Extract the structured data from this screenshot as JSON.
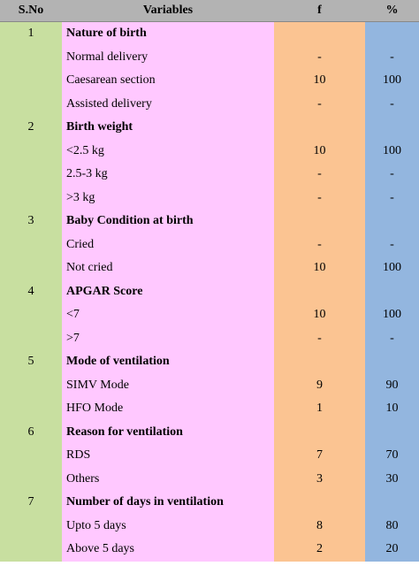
{
  "header": {
    "sno": "S.No",
    "variables": "Variables",
    "f": "f",
    "pct": "%"
  },
  "rows": [
    {
      "sno": "1",
      "label": "Nature of birth",
      "bold": true,
      "f": "",
      "pct": ""
    },
    {
      "sno": "",
      "label": "Normal delivery",
      "bold": false,
      "f": "-",
      "pct": "-"
    },
    {
      "sno": "",
      "label": "Caesarean section",
      "bold": false,
      "f": "10",
      "pct": "100"
    },
    {
      "sno": "",
      "label": "Assisted delivery",
      "bold": false,
      "f": "-",
      "pct": "-"
    },
    {
      "sno": "2",
      "label": "Birth weight",
      "bold": true,
      "f": "",
      "pct": ""
    },
    {
      "sno": "",
      "label": "<2.5 kg",
      "bold": false,
      "f": "10",
      "pct": "100"
    },
    {
      "sno": "",
      "label": "2.5-3 kg",
      "bold": false,
      "f": "-",
      "pct": "-"
    },
    {
      "sno": "",
      "label": ">3 kg",
      "bold": false,
      "f": "-",
      "pct": "-"
    },
    {
      "sno": "3",
      "label": "Baby Condition at birth",
      "bold": true,
      "f": "",
      "pct": ""
    },
    {
      "sno": "",
      "label": "Cried",
      "bold": false,
      "f": "-",
      "pct": "-"
    },
    {
      "sno": "",
      "label": "Not cried",
      "bold": false,
      "f": "10",
      "pct": "100"
    },
    {
      "sno": "4",
      "label": "APGAR Score",
      "bold": true,
      "f": "",
      "pct": ""
    },
    {
      "sno": "",
      "label": "<7",
      "bold": false,
      "f": "10",
      "pct": "100"
    },
    {
      "sno": "",
      "label": ">7",
      "bold": false,
      "f": "-",
      "pct": "-"
    },
    {
      "sno": "5",
      "label": "Mode of ventilation",
      "bold": true,
      "f": "",
      "pct": ""
    },
    {
      "sno": "",
      "label": "SIMV Mode",
      "bold": false,
      "f": "9",
      "pct": "90"
    },
    {
      "sno": "",
      "label": "HFO Mode",
      "bold": false,
      "f": "1",
      "pct": "10"
    },
    {
      "sno": "6",
      "label": "Reason for ventilation",
      "bold": true,
      "f": "",
      "pct": ""
    },
    {
      "sno": "",
      "label": "RDS",
      "bold": false,
      "f": "7",
      "pct": "70"
    },
    {
      "sno": "",
      "label": "Others",
      "bold": false,
      "f": "3",
      "pct": "30"
    },
    {
      "sno": "7",
      "label": "Number of days in ventilation",
      "bold": true,
      "f": "",
      "pct": ""
    },
    {
      "sno": "",
      "label": "Upto 5 days",
      "bold": false,
      "f": "8",
      "pct": "80"
    },
    {
      "sno": "",
      "label": "Above 5 days",
      "bold": false,
      "f": "2",
      "pct": "20"
    }
  ],
  "colors": {
    "header": "#b3b3b3",
    "sno_column": "#c8dfa0",
    "variables_column": "#ffc8ff",
    "f_column": "#fbc492",
    "pct_column": "#93b6df"
  }
}
